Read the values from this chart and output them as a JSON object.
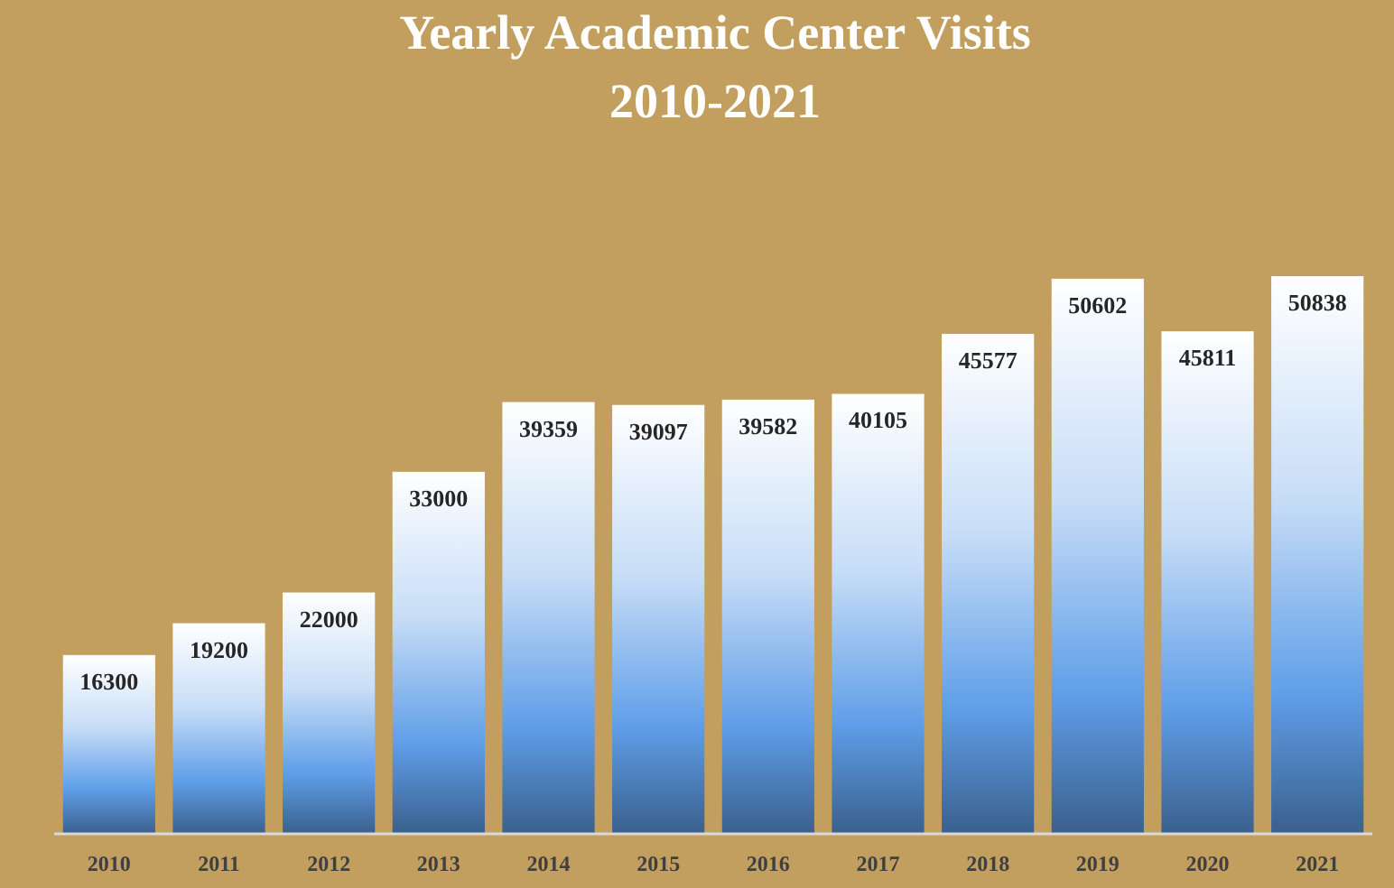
{
  "chart_data": {
    "type": "bar",
    "title": "Yearly Academic Center Visits",
    "subtitle": "2010-2021",
    "categories": [
      "2010",
      "2011",
      "2012",
      "2013",
      "2014",
      "2015",
      "2016",
      "2017",
      "2018",
      "2019",
      "2020",
      "2021"
    ],
    "values": [
      16300,
      19200,
      22000,
      33000,
      39359,
      39097,
      39582,
      40105,
      45577,
      50602,
      45811,
      50838
    ],
    "color": "#5f9ee8",
    "data_labels": true
  }
}
